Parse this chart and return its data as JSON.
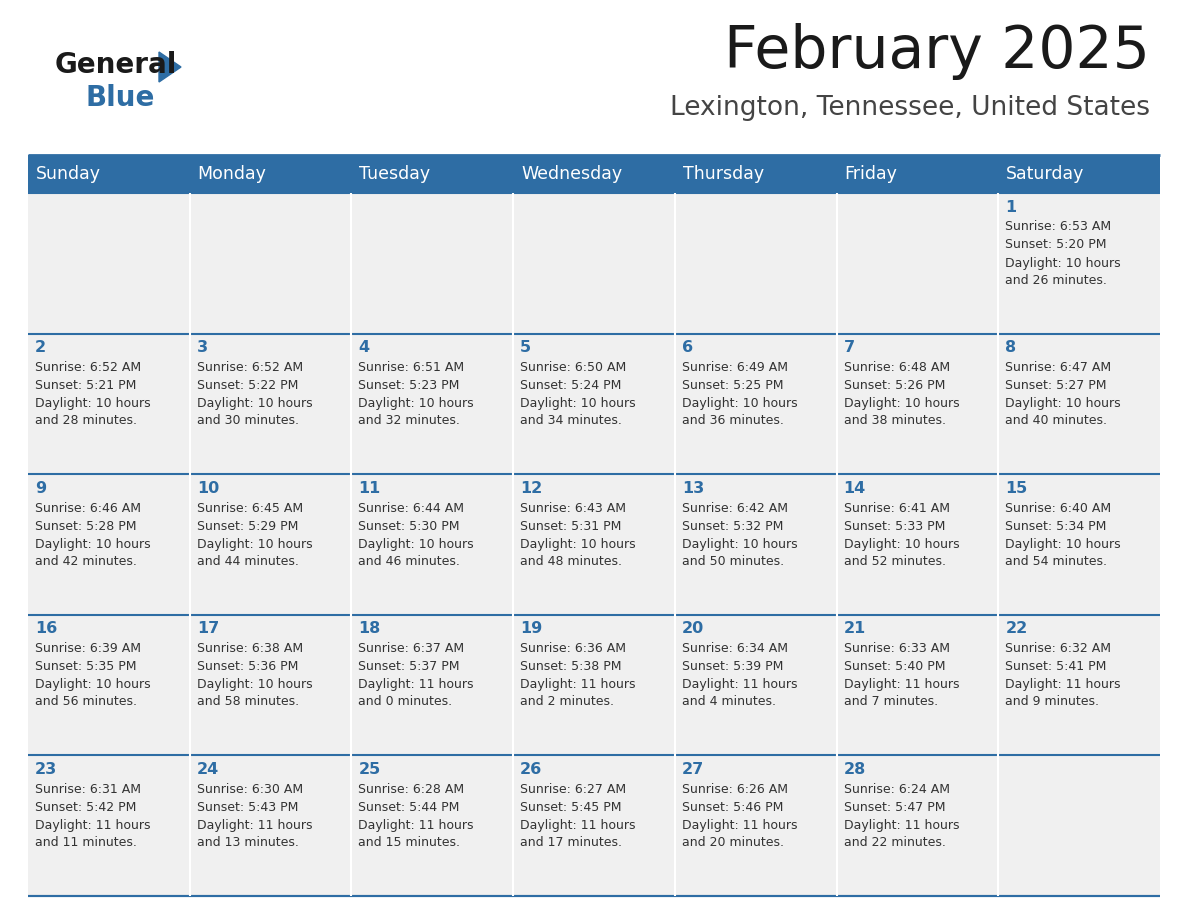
{
  "title": "February 2025",
  "subtitle": "Lexington, Tennessee, United States",
  "header_bg": "#2E6DA4",
  "header_text_color": "#FFFFFF",
  "cell_bg": "#F0F0F0",
  "day_number_color": "#2E6DA4",
  "cell_text_color": "#333333",
  "title_color": "#1a1a1a",
  "subtitle_color": "#444444",
  "border_color": "#2E6DA4",
  "days_of_week": [
    "Sunday",
    "Monday",
    "Tuesday",
    "Wednesday",
    "Thursday",
    "Friday",
    "Saturday"
  ],
  "weeks": [
    [
      {
        "day": null,
        "sunrise": null,
        "sunset": null,
        "daylight": null
      },
      {
        "day": null,
        "sunrise": null,
        "sunset": null,
        "daylight": null
      },
      {
        "day": null,
        "sunrise": null,
        "sunset": null,
        "daylight": null
      },
      {
        "day": null,
        "sunrise": null,
        "sunset": null,
        "daylight": null
      },
      {
        "day": null,
        "sunrise": null,
        "sunset": null,
        "daylight": null
      },
      {
        "day": null,
        "sunrise": null,
        "sunset": null,
        "daylight": null
      },
      {
        "day": 1,
        "sunrise": "6:53 AM",
        "sunset": "5:20 PM",
        "daylight": "10 hours\nand 26 minutes."
      }
    ],
    [
      {
        "day": 2,
        "sunrise": "6:52 AM",
        "sunset": "5:21 PM",
        "daylight": "10 hours\nand 28 minutes."
      },
      {
        "day": 3,
        "sunrise": "6:52 AM",
        "sunset": "5:22 PM",
        "daylight": "10 hours\nand 30 minutes."
      },
      {
        "day": 4,
        "sunrise": "6:51 AM",
        "sunset": "5:23 PM",
        "daylight": "10 hours\nand 32 minutes."
      },
      {
        "day": 5,
        "sunrise": "6:50 AM",
        "sunset": "5:24 PM",
        "daylight": "10 hours\nand 34 minutes."
      },
      {
        "day": 6,
        "sunrise": "6:49 AM",
        "sunset": "5:25 PM",
        "daylight": "10 hours\nand 36 minutes."
      },
      {
        "day": 7,
        "sunrise": "6:48 AM",
        "sunset": "5:26 PM",
        "daylight": "10 hours\nand 38 minutes."
      },
      {
        "day": 8,
        "sunrise": "6:47 AM",
        "sunset": "5:27 PM",
        "daylight": "10 hours\nand 40 minutes."
      }
    ],
    [
      {
        "day": 9,
        "sunrise": "6:46 AM",
        "sunset": "5:28 PM",
        "daylight": "10 hours\nand 42 minutes."
      },
      {
        "day": 10,
        "sunrise": "6:45 AM",
        "sunset": "5:29 PM",
        "daylight": "10 hours\nand 44 minutes."
      },
      {
        "day": 11,
        "sunrise": "6:44 AM",
        "sunset": "5:30 PM",
        "daylight": "10 hours\nand 46 minutes."
      },
      {
        "day": 12,
        "sunrise": "6:43 AM",
        "sunset": "5:31 PM",
        "daylight": "10 hours\nand 48 minutes."
      },
      {
        "day": 13,
        "sunrise": "6:42 AM",
        "sunset": "5:32 PM",
        "daylight": "10 hours\nand 50 minutes."
      },
      {
        "day": 14,
        "sunrise": "6:41 AM",
        "sunset": "5:33 PM",
        "daylight": "10 hours\nand 52 minutes."
      },
      {
        "day": 15,
        "sunrise": "6:40 AM",
        "sunset": "5:34 PM",
        "daylight": "10 hours\nand 54 minutes."
      }
    ],
    [
      {
        "day": 16,
        "sunrise": "6:39 AM",
        "sunset": "5:35 PM",
        "daylight": "10 hours\nand 56 minutes."
      },
      {
        "day": 17,
        "sunrise": "6:38 AM",
        "sunset": "5:36 PM",
        "daylight": "10 hours\nand 58 minutes."
      },
      {
        "day": 18,
        "sunrise": "6:37 AM",
        "sunset": "5:37 PM",
        "daylight": "11 hours\nand 0 minutes."
      },
      {
        "day": 19,
        "sunrise": "6:36 AM",
        "sunset": "5:38 PM",
        "daylight": "11 hours\nand 2 minutes."
      },
      {
        "day": 20,
        "sunrise": "6:34 AM",
        "sunset": "5:39 PM",
        "daylight": "11 hours\nand 4 minutes."
      },
      {
        "day": 21,
        "sunrise": "6:33 AM",
        "sunset": "5:40 PM",
        "daylight": "11 hours\nand 7 minutes."
      },
      {
        "day": 22,
        "sunrise": "6:32 AM",
        "sunset": "5:41 PM",
        "daylight": "11 hours\nand 9 minutes."
      }
    ],
    [
      {
        "day": 23,
        "sunrise": "6:31 AM",
        "sunset": "5:42 PM",
        "daylight": "11 hours\nand 11 minutes."
      },
      {
        "day": 24,
        "sunrise": "6:30 AM",
        "sunset": "5:43 PM",
        "daylight": "11 hours\nand 13 minutes."
      },
      {
        "day": 25,
        "sunrise": "6:28 AM",
        "sunset": "5:44 PM",
        "daylight": "11 hours\nand 15 minutes."
      },
      {
        "day": 26,
        "sunrise": "6:27 AM",
        "sunset": "5:45 PM",
        "daylight": "11 hours\nand 17 minutes."
      },
      {
        "day": 27,
        "sunrise": "6:26 AM",
        "sunset": "5:46 PM",
        "daylight": "11 hours\nand 20 minutes."
      },
      {
        "day": 28,
        "sunrise": "6:24 AM",
        "sunset": "5:47 PM",
        "daylight": "11 hours\nand 22 minutes."
      },
      {
        "day": null,
        "sunrise": null,
        "sunset": null,
        "daylight": null
      }
    ]
  ],
  "logo_color_general": "#1a1a1a",
  "logo_color_blue": "#2E6DA4",
  "logo_text_general": "General",
  "logo_text_blue": "Blue"
}
